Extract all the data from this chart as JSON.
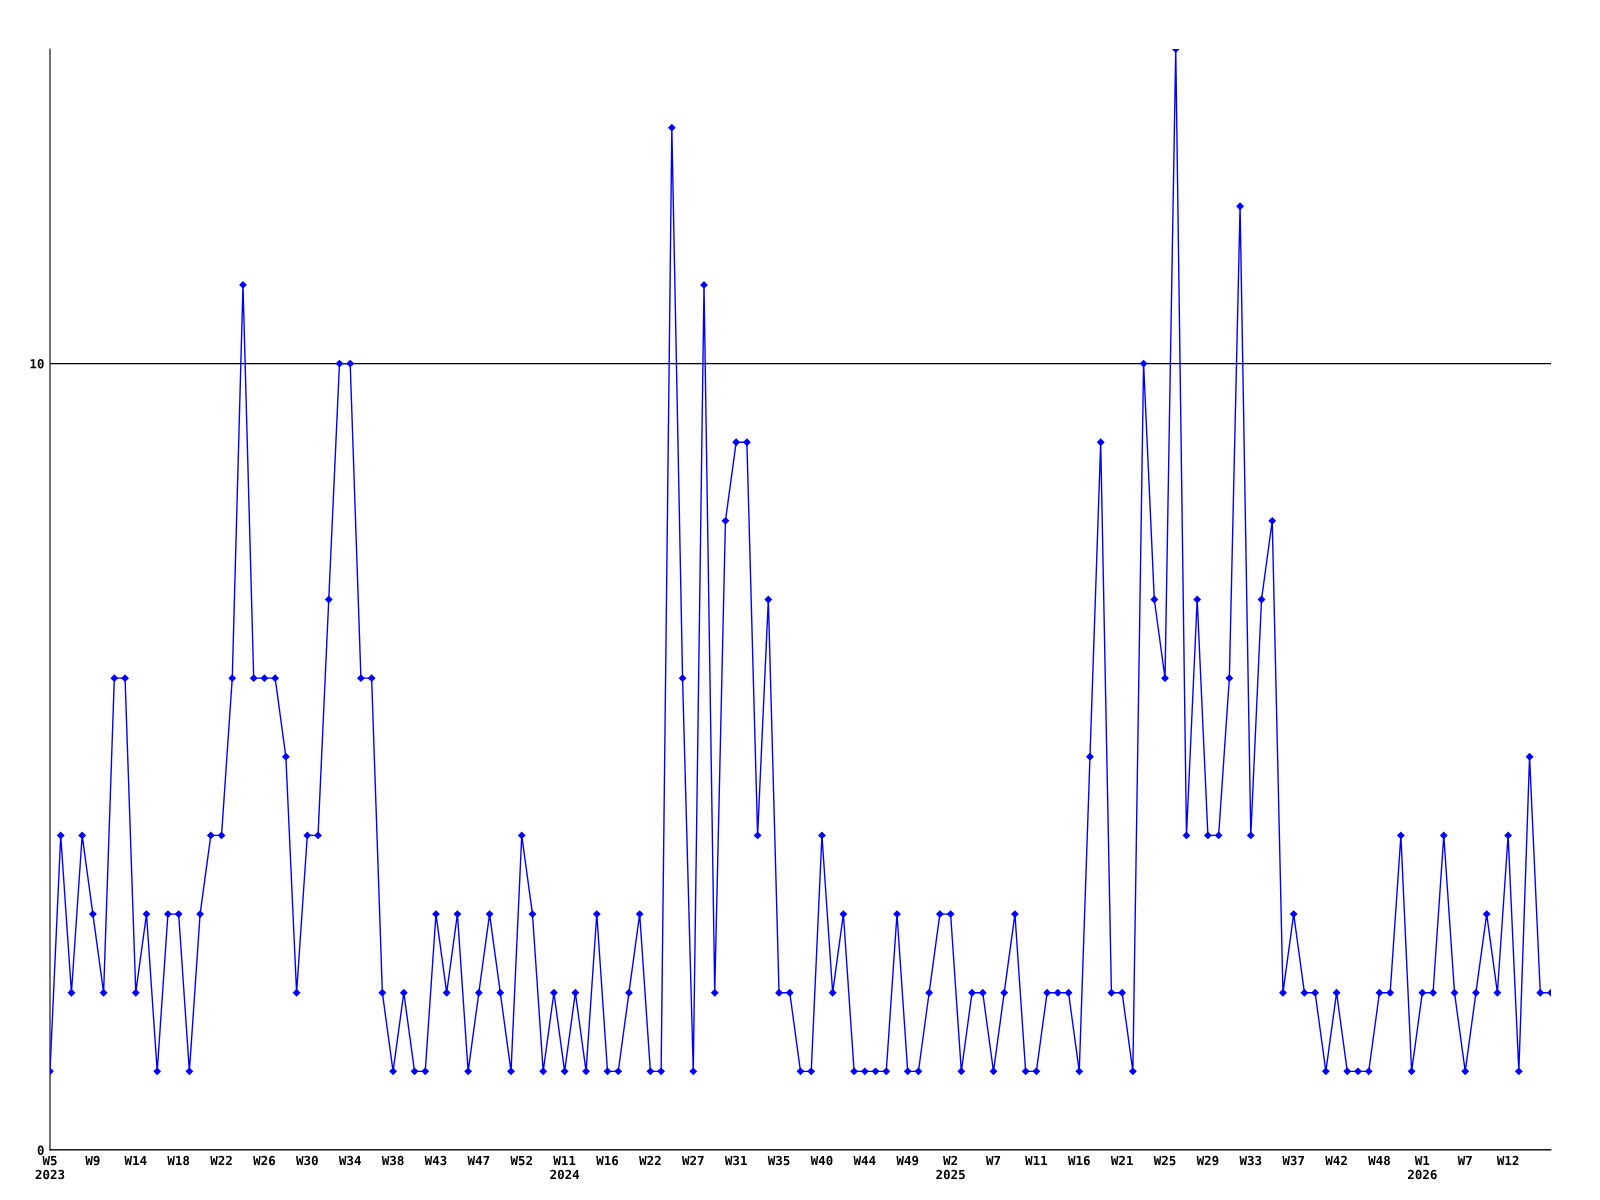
{
  "chart_data": {
    "type": "line",
    "categories": [
      "W5\n2023",
      null,
      null,
      null,
      "W9",
      null,
      null,
      null,
      "W14",
      null,
      null,
      null,
      "W18",
      null,
      null,
      null,
      "W22",
      null,
      null,
      null,
      "W26",
      null,
      null,
      null,
      "W30",
      null,
      null,
      null,
      "W34",
      null,
      null,
      null,
      "W38",
      null,
      null,
      null,
      "W43",
      null,
      null,
      null,
      "W47",
      null,
      null,
      null,
      "W52",
      null,
      null,
      null,
      "W11\n2024",
      null,
      null,
      null,
      "W16",
      null,
      null,
      null,
      "W22",
      null,
      null,
      null,
      "W27",
      null,
      null,
      null,
      "W31",
      null,
      null,
      null,
      "W35",
      null,
      null,
      null,
      "W40",
      null,
      null,
      null,
      "W44",
      null,
      null,
      null,
      "W49",
      null,
      null,
      null,
      "W2\n2025",
      null,
      null,
      null,
      "W7",
      null,
      null,
      null,
      "W11",
      null,
      null,
      null,
      "W16",
      null,
      null,
      null,
      "W21",
      null,
      null,
      null,
      "W25",
      null,
      null,
      null,
      "W29",
      null,
      null,
      null,
      "W33",
      null,
      null,
      null,
      "W37",
      null,
      null,
      null,
      "W42",
      null,
      null,
      null,
      "W48",
      null,
      null,
      null,
      "W1\n2026",
      null,
      null,
      null,
      "W7",
      null,
      null,
      null,
      "W12",
      null,
      null,
      null,
      null
    ],
    "series": [
      {
        "color": "#0000ff",
        "values": [
          1,
          4,
          2,
          4,
          3,
          2,
          6,
          6,
          2,
          3,
          1,
          3,
          3,
          1,
          3,
          4,
          4,
          6,
          11,
          6,
          6,
          6,
          5,
          2,
          4,
          4,
          7,
          10,
          10,
          6,
          6,
          2,
          1,
          2,
          1,
          1,
          3,
          2,
          3,
          1,
          2,
          3,
          2,
          1,
          4,
          3,
          1,
          2,
          1,
          2,
          1,
          3,
          1,
          1,
          2,
          3,
          1,
          1,
          13,
          6,
          1,
          11,
          2,
          8,
          9,
          9,
          4,
          7,
          2,
          2,
          1,
          1,
          4,
          2,
          3,
          1,
          1,
          1,
          1,
          3,
          1,
          1,
          2,
          3,
          3,
          1,
          2,
          2,
          1,
          2,
          3,
          1,
          1,
          2,
          2,
          2,
          1,
          5,
          9,
          2,
          2,
          1,
          10,
          7,
          6,
          14,
          4,
          7,
          4,
          4,
          6,
          12,
          4,
          7,
          8,
          2,
          3,
          2,
          2,
          1,
          2,
          1,
          1,
          1,
          2,
          2,
          4,
          1,
          2,
          2,
          4,
          2,
          1,
          2,
          3,
          2,
          4,
          1,
          5,
          2,
          2
        ]
      }
    ],
    "ylim": [
      0,
      14
    ],
    "yticks": [
      0,
      10
    ],
    "grid": "y",
    "marker": "diamond",
    "line_style": "solid"
  }
}
